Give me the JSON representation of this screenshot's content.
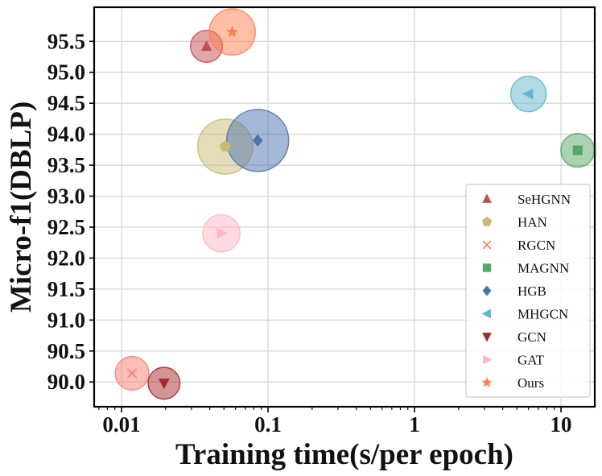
{
  "chart_data": {
    "type": "scatter",
    "xscale": "log",
    "xlabel": "Training time(s/per epoch)",
    "ylabel": "Micro-f1(DBLP)",
    "xlim": [
      0.0065,
      17
    ],
    "ylim": [
      89.6,
      96.05
    ],
    "xticks": [
      {
        "value": 0.01,
        "label": "0.01"
      },
      {
        "value": 0.1,
        "label": "0.1"
      },
      {
        "value": 1,
        "label": "1"
      },
      {
        "value": 10,
        "label": "10"
      }
    ],
    "yticks": [
      {
        "value": 90.0,
        "label": "90.0"
      },
      {
        "value": 90.5,
        "label": "90.5"
      },
      {
        "value": 91.0,
        "label": "91.0"
      },
      {
        "value": 91.5,
        "label": "91.5"
      },
      {
        "value": 92.0,
        "label": "92.0"
      },
      {
        "value": 92.5,
        "label": "92.5"
      },
      {
        "value": 93.0,
        "label": "93.0"
      },
      {
        "value": 93.5,
        "label": "93.5"
      },
      {
        "value": 94.0,
        "label": "94.0"
      },
      {
        "value": 94.5,
        "label": "94.5"
      },
      {
        "value": 95.0,
        "label": "95.0"
      },
      {
        "value": 95.5,
        "label": "95.5"
      }
    ],
    "grid": true,
    "legend_position": "lower-right",
    "series": [
      {
        "name": "SeHGNN",
        "x": 0.038,
        "y": 95.42,
        "size": 0.9,
        "marker": "triangle-up",
        "color": "#c44e52"
      },
      {
        "name": "HAN",
        "x": 0.051,
        "y": 93.8,
        "size": 1.55,
        "marker": "pentagon",
        "color": "#ccb974"
      },
      {
        "name": "RGCN",
        "x": 0.0118,
        "y": 90.14,
        "size": 0.95,
        "marker": "x",
        "color": "#fa8072"
      },
      {
        "name": "MAGNN",
        "x": 13.0,
        "y": 93.74,
        "size": 0.95,
        "marker": "square",
        "color": "#55a868"
      },
      {
        "name": "HGB",
        "x": 0.085,
        "y": 93.9,
        "size": 1.75,
        "marker": "diamond",
        "color": "#4c72b0"
      },
      {
        "name": "MHGCN",
        "x": 6.0,
        "y": 94.65,
        "size": 1.0,
        "marker": "triangle-left",
        "color": "#64b5cd"
      },
      {
        "name": "GCN",
        "x": 0.0195,
        "y": 89.98,
        "size": 0.9,
        "marker": "triangle-down",
        "color": "#a52a2a"
      },
      {
        "name": "GAT",
        "x": 0.048,
        "y": 92.4,
        "size": 1.05,
        "marker": "triangle-right",
        "color": "#ffb6c1"
      },
      {
        "name": "Ours",
        "x": 0.057,
        "y": 95.65,
        "size": 1.3,
        "marker": "star",
        "color": "#ff7f50"
      }
    ]
  }
}
